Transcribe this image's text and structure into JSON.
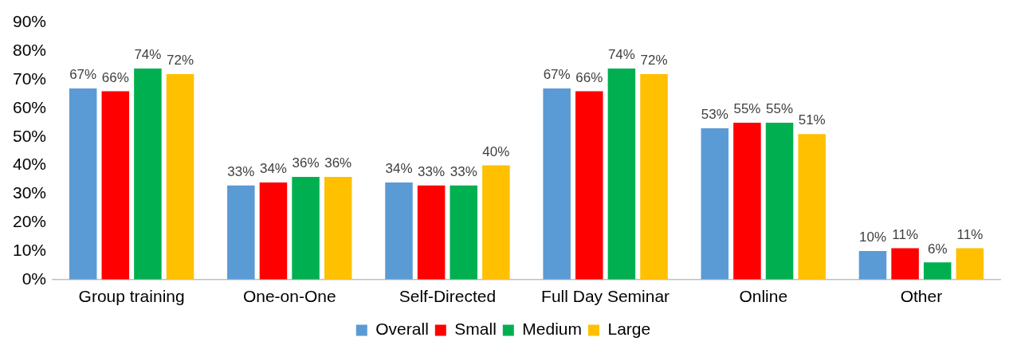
{
  "chart_data": {
    "type": "bar",
    "categories": [
      "Group training",
      "One-on-One",
      "Self-Directed",
      "Full Day Seminar",
      "Online",
      "Other"
    ],
    "series": [
      {
        "name": "Overall",
        "color": "#5b9bd5",
        "values": [
          67,
          33,
          34,
          67,
          53,
          10
        ],
        "value_labels": [
          "67%",
          "33%",
          "34%",
          "67%",
          "53%",
          "10%"
        ]
      },
      {
        "name": "Small",
        "color": "#ff0000",
        "values": [
          66,
          34,
          33,
          66,
          55,
          11
        ],
        "value_labels": [
          "66%",
          "34%",
          "33%",
          "66%",
          "55%",
          "11%"
        ]
      },
      {
        "name": "Medium",
        "color": "#00b050",
        "values": [
          74,
          36,
          33,
          74,
          55,
          6
        ],
        "value_labels": [
          "74%",
          "36%",
          "33%",
          "74%",
          "55%",
          "6%"
        ]
      },
      {
        "name": "Large",
        "color": "#ffc000",
        "values": [
          72,
          36,
          40,
          72,
          51,
          11
        ],
        "value_labels": [
          "72%",
          "36%",
          "40%",
          "72%",
          "51%",
          "11%"
        ]
      }
    ],
    "ylim": [
      0,
      90
    ],
    "yticks": [
      {
        "value": 0,
        "label": "0%"
      },
      {
        "value": 10,
        "label": "10%"
      },
      {
        "value": 20,
        "label": "20%"
      },
      {
        "value": 30,
        "label": "30%"
      },
      {
        "value": 40,
        "label": "40%"
      },
      {
        "value": 50,
        "label": "50%"
      },
      {
        "value": 60,
        "label": "60%"
      },
      {
        "value": 70,
        "label": "70%"
      },
      {
        "value": 80,
        "label": "80%"
      },
      {
        "value": 90,
        "label": "90%"
      }
    ],
    "grid": false,
    "legend": "bottom"
  }
}
